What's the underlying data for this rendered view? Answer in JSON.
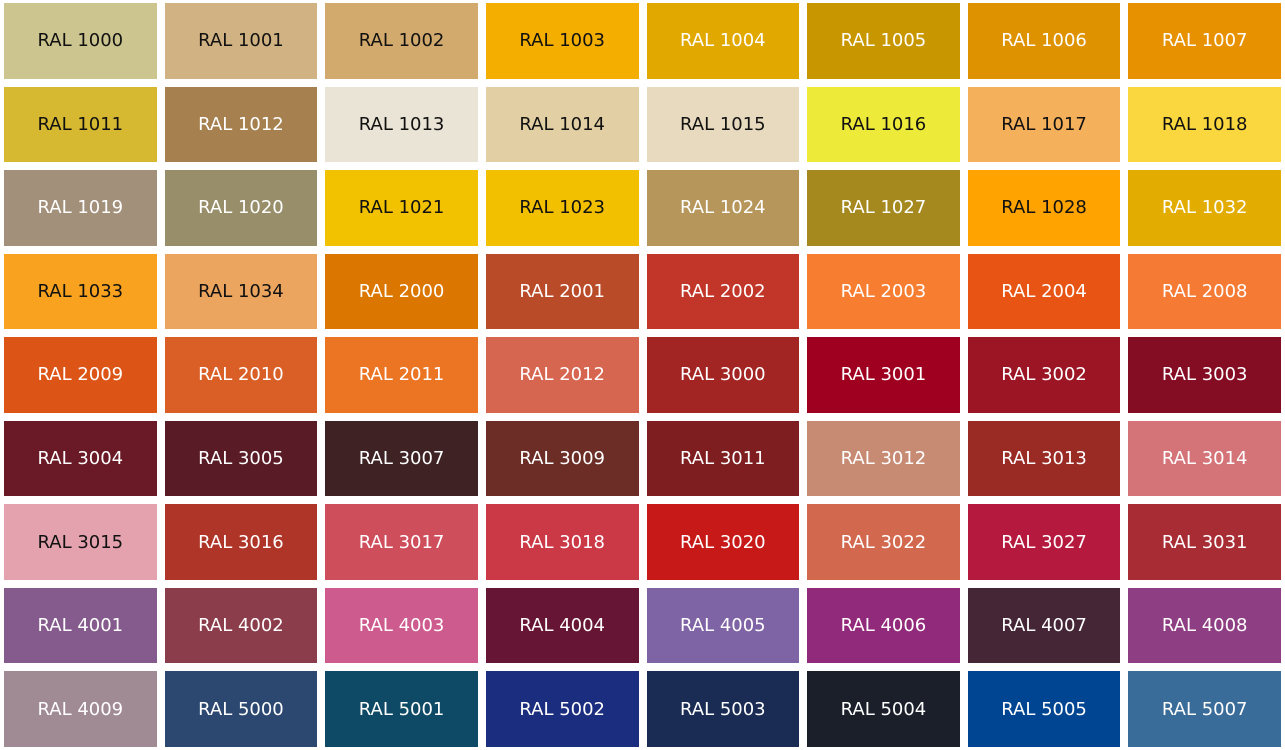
{
  "swatches": [
    {
      "label": "RAL 1000",
      "color": "#CCC58F",
      "text_color": "#111111"
    },
    {
      "label": "RAL 1001",
      "color": "#D1B383",
      "text_color": "#111111"
    },
    {
      "label": "RAL 1002",
      "color": "#D2AA6D",
      "text_color": "#111111"
    },
    {
      "label": "RAL 1003",
      "color": "#F3AE00",
      "text_color": "#111111"
    },
    {
      "label": "RAL 1004",
      "color": "#E1A800",
      "text_color": "#FFFFFF"
    },
    {
      "label": "RAL 1005",
      "color": "#C89700",
      "text_color": "#FFFFFF"
    },
    {
      "label": "RAL 1006",
      "color": "#DE9200",
      "text_color": "#FFFFFF"
    },
    {
      "label": "RAL 1007",
      "color": "#E79100",
      "text_color": "#FFFFFF"
    },
    {
      "label": "RAL 1011",
      "color": "#D6B930",
      "text_color": "#111111"
    },
    {
      "label": "RAL 1012",
      "color": "#A6804F",
      "text_color": "#FFFFFF"
    },
    {
      "label": "RAL 1013",
      "color": "#E9E4D5",
      "text_color": "#111111"
    },
    {
      "label": "RAL 1014",
      "color": "#E2CFA3",
      "text_color": "#111111"
    },
    {
      "label": "RAL 1015",
      "color": "#E8DABF",
      "text_color": "#111111"
    },
    {
      "label": "RAL 1016",
      "color": "#EDEA3A",
      "text_color": "#111111"
    },
    {
      "label": "RAL 1017",
      "color": "#F5B05C",
      "text_color": "#111111"
    },
    {
      "label": "RAL 1018",
      "color": "#FAD73E",
      "text_color": "#111111"
    },
    {
      "label": "RAL 1019",
      "color": "#A3907A",
      "text_color": "#FFFFFF"
    },
    {
      "label": "RAL 1020",
      "color": "#988F6A",
      "text_color": "#FFFFFF"
    },
    {
      "label": "RAL 1021",
      "color": "#F2C200",
      "text_color": "#111111"
    },
    {
      "label": "RAL 1023",
      "color": "#F3C000",
      "text_color": "#111111"
    },
    {
      "label": "RAL 1024",
      "color": "#B6965A",
      "text_color": "#FFFFFF"
    },
    {
      "label": "RAL 1027",
      "color": "#A5881E",
      "text_color": "#FFFFFF"
    },
    {
      "label": "RAL 1028",
      "color": "#FFA300",
      "text_color": "#111111"
    },
    {
      "label": "RAL 1032",
      "color": "#E2AC00",
      "text_color": "#FFFFFF"
    },
    {
      "label": "RAL 1033",
      "color": "#F8A21F",
      "text_color": "#111111"
    },
    {
      "label": "RAL 1034",
      "color": "#EBA55F",
      "text_color": "#111111"
    },
    {
      "label": "RAL 2000",
      "color": "#DB7600",
      "text_color": "#FFFFFF"
    },
    {
      "label": "RAL 2001",
      "color": "#BA4B28",
      "text_color": "#FFFFFF"
    },
    {
      "label": "RAL 2002",
      "color": "#C13628",
      "text_color": "#FFFFFF"
    },
    {
      "label": "RAL 2003",
      "color": "#F77E31",
      "text_color": "#FFFFFF"
    },
    {
      "label": "RAL 2004",
      "color": "#E75413",
      "text_color": "#FFFFFF"
    },
    {
      "label": "RAL 2008",
      "color": "#F57A34",
      "text_color": "#FFFFFF"
    },
    {
      "label": "RAL 2009",
      "color": "#DC5516",
      "text_color": "#FFFFFF"
    },
    {
      "label": "RAL 2010",
      "color": "#DA5F26",
      "text_color": "#FFFFFF"
    },
    {
      "label": "RAL 2011",
      "color": "#EC7524",
      "text_color": "#FFFFFF"
    },
    {
      "label": "RAL 2012",
      "color": "#D76650",
      "text_color": "#FFFFFF"
    },
    {
      "label": "RAL 3000",
      "color": "#A32523",
      "text_color": "#FFFFFF"
    },
    {
      "label": "RAL 3001",
      "color": "#A00020",
      "text_color": "#FFFFFF"
    },
    {
      "label": "RAL 3002",
      "color": "#9C1525",
      "text_color": "#FFFFFF"
    },
    {
      "label": "RAL 3003",
      "color": "#850D23",
      "text_color": "#FFFFFF"
    },
    {
      "label": "RAL 3004",
      "color": "#6A1A26",
      "text_color": "#FFFFFF"
    },
    {
      "label": "RAL 3005",
      "color": "#591B26",
      "text_color": "#FFFFFF"
    },
    {
      "label": "RAL 3007",
      "color": "#3E2224",
      "text_color": "#FFFFFF"
    },
    {
      "label": "RAL 3009",
      "color": "#6B2D26",
      "text_color": "#FFFFFF"
    },
    {
      "label": "RAL 3011",
      "color": "#7E1E20",
      "text_color": "#FFFFFF"
    },
    {
      "label": "RAL 3012",
      "color": "#C78A73",
      "text_color": "#FFFFFF"
    },
    {
      "label": "RAL 3013",
      "color": "#9A2A24",
      "text_color": "#FFFFFF"
    },
    {
      "label": "RAL 3014",
      "color": "#D47479",
      "text_color": "#FFFFFF"
    },
    {
      "label": "RAL 3015",
      "color": "#E4A2AF",
      "text_color": "#111111"
    },
    {
      "label": "RAL 3016",
      "color": "#AF3528",
      "text_color": "#FFFFFF"
    },
    {
      "label": "RAL 3017",
      "color": "#CF4E5C",
      "text_color": "#FFFFFF"
    },
    {
      "label": "RAL 3018",
      "color": "#CB3947",
      "text_color": "#FFFFFF"
    },
    {
      "label": "RAL 3020",
      "color": "#C71A18",
      "text_color": "#FFFFFF"
    },
    {
      "label": "RAL 3022",
      "color": "#D2694F",
      "text_color": "#FFFFFF"
    },
    {
      "label": "RAL 3027",
      "color": "#B51A3E",
      "text_color": "#FFFFFF"
    },
    {
      "label": "RAL 3031",
      "color": "#A72C34",
      "text_color": "#FFFFFF"
    },
    {
      "label": "RAL 4001",
      "color": "#845B8C",
      "text_color": "#FFFFFF"
    },
    {
      "label": "RAL 4002",
      "color": "#8B3D4B",
      "text_color": "#FFFFFF"
    },
    {
      "label": "RAL 4003",
      "color": "#CE5B8E",
      "text_color": "#FFFFFF"
    },
    {
      "label": "RAL 4004",
      "color": "#661534",
      "text_color": "#FFFFFF"
    },
    {
      "label": "RAL 4005",
      "color": "#7E63A5",
      "text_color": "#FFFFFF"
    },
    {
      "label": "RAL 4006",
      "color": "#922A7B",
      "text_color": "#FFFFFF"
    },
    {
      "label": "RAL 4007",
      "color": "#452637",
      "text_color": "#FFFFFF"
    },
    {
      "label": "RAL 4008",
      "color": "#8E3E83",
      "text_color": "#FFFFFF"
    },
    {
      "label": "RAL 4009",
      "color": "#A08A93",
      "text_color": "#FFFFFF"
    },
    {
      "label": "RAL 5000",
      "color": "#2D4870",
      "text_color": "#FFFFFF"
    },
    {
      "label": "RAL 5001",
      "color": "#0E4A66",
      "text_color": "#FFFFFF"
    },
    {
      "label": "RAL 5002",
      "color": "#1B2D7E",
      "text_color": "#FFFFFF"
    },
    {
      "label": "RAL 5003",
      "color": "#1A2C54",
      "text_color": "#FFFFFF"
    },
    {
      "label": "RAL 5004",
      "color": "#1A1F2A",
      "text_color": "#FFFFFF"
    },
    {
      "label": "RAL 5005",
      "color": "#004591",
      "text_color": "#FFFFFF"
    },
    {
      "label": "RAL 5007",
      "color": "#3A6C99",
      "text_color": "#FFFFFF"
    }
  ]
}
